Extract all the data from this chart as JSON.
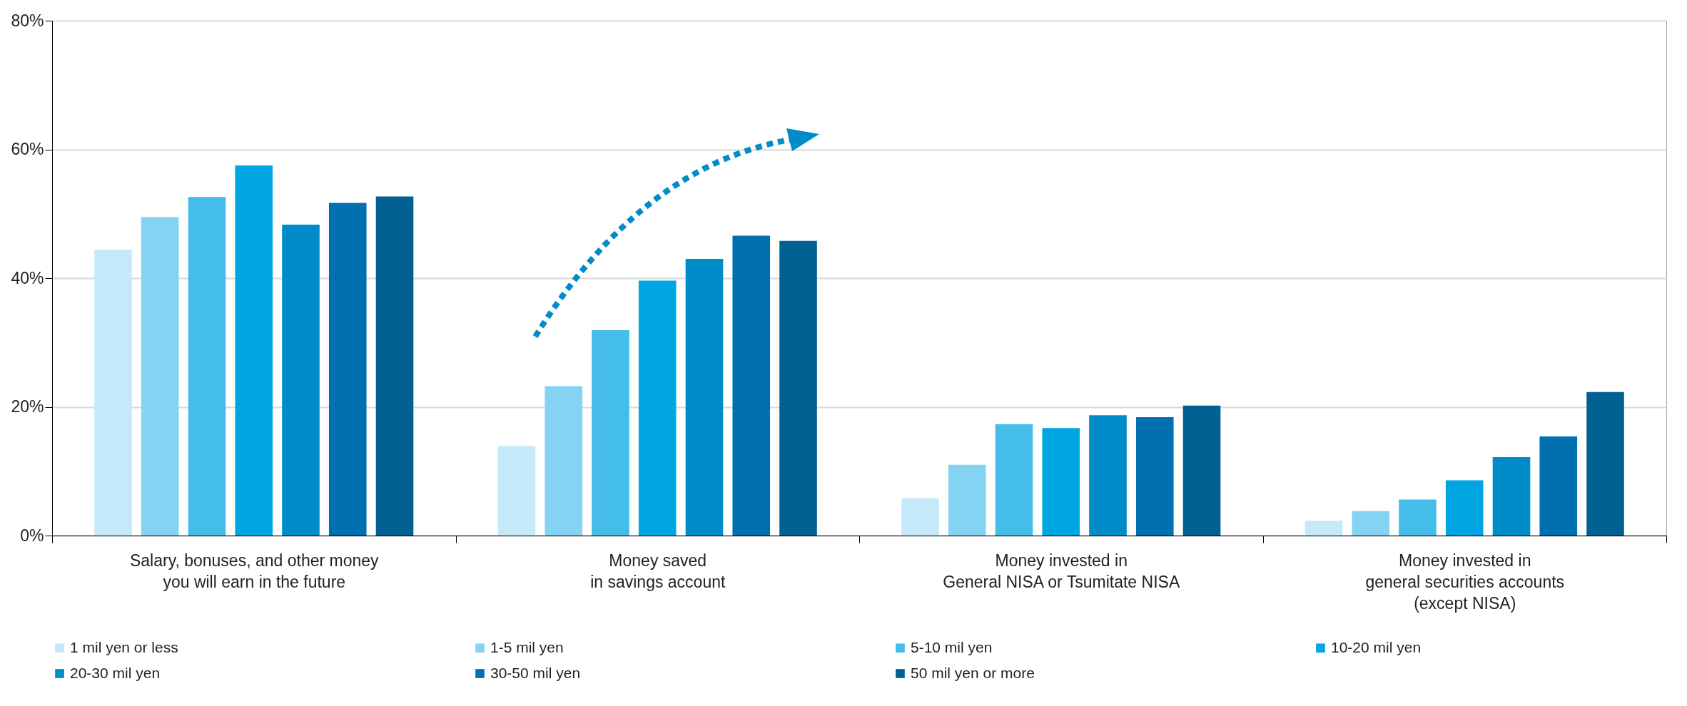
{
  "chart_data": {
    "type": "bar",
    "categories": [
      "Salary, bonuses, and other money\nyou will earn in the future",
      "Money saved\nin savings account",
      "Money invested in\nGeneral NISA or Tsumitate NISA",
      "Money invested in\ngeneral securities accounts\n(except NISA)"
    ],
    "series": [
      {
        "name": "1 mil yen or less",
        "color": "#c5e9f8",
        "values": [
          44.4,
          13.9,
          5.8,
          2.3
        ]
      },
      {
        "name": "1-5 mil yen",
        "color": "#84d3f2",
        "values": [
          49.5,
          23.2,
          11.0,
          3.8
        ]
      },
      {
        "name": "5-10 mil yen",
        "color": "#44bde9",
        "values": [
          52.6,
          31.9,
          17.3,
          5.6
        ]
      },
      {
        "name": "10-20 mil yen",
        "color": "#00a6e2",
        "values": [
          57.5,
          39.6,
          16.7,
          8.6
        ]
      },
      {
        "name": "20-30 mil yen",
        "color": "#008bc9",
        "values": [
          48.3,
          43.0,
          18.7,
          12.2
        ]
      },
      {
        "name": "30-50 mil yen",
        "color": "#0070b0",
        "values": [
          51.7,
          46.6,
          18.4,
          15.4
        ]
      },
      {
        "name": "50 mil yen or more",
        "color": "#006192",
        "values": [
          52.7,
          45.8,
          20.2,
          22.3
        ]
      }
    ],
    "ylim": [
      0,
      80
    ],
    "yticks": [
      {
        "value": 0,
        "label": "0%"
      },
      {
        "value": 20,
        "label": "20%"
      },
      {
        "value": 40,
        "label": "40%"
      },
      {
        "value": 60,
        "label": "60%"
      },
      {
        "value": 80,
        "label": "80%"
      }
    ],
    "grid": "y",
    "legend": "bottom"
  }
}
